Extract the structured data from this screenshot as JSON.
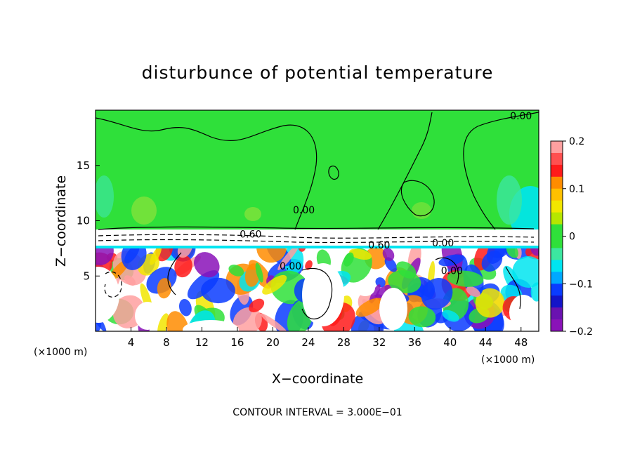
{
  "chart_data": {
    "type": "heatmap",
    "title": "disturbunce of potential temperature",
    "xlabel": "X−coordinate",
    "ylabel": "Z−coordinate",
    "x_unit": "(×1000 m)",
    "x_unit_right": "(×1000 m)",
    "xlim": [
      0,
      50
    ],
    "ylim": [
      0,
      20
    ],
    "x_ticks": [
      4,
      8,
      12,
      16,
      20,
      24,
      28,
      32,
      36,
      40,
      44,
      48
    ],
    "y_ticks": [
      5,
      10,
      15
    ],
    "colorbar": {
      "range": [
        -0.2,
        0.2
      ],
      "tick_values": [
        0.2,
        0.1,
        0,
        -0.1,
        -0.2
      ],
      "tick_labels": [
        "0.2",
        "0.1",
        "0",
        "−0.1",
        "−0.2"
      ]
    },
    "contour_labels": [
      {
        "text": "0.00",
        "x": 48.0,
        "z": 19.5
      },
      {
        "text": "0.00",
        "x": 23.5,
        "z": 11.0
      },
      {
        "text": "0.60",
        "x": 17.5,
        "z": 8.8
      },
      {
        "text": "0.00",
        "x": 22.0,
        "z": 5.9
      },
      {
        "text": "0.60",
        "x": 32.0,
        "z": 7.8
      },
      {
        "text": "0.00",
        "x": 39.2,
        "z": 8.0
      },
      {
        "text": "0.00",
        "x": 40.2,
        "z": 5.5
      }
    ],
    "footer": "CONTOUR INTERVAL = 3.000E−01"
  },
  "colors": {
    "green": "#2fe03a",
    "cyan": "#00e5f0",
    "blue": "#0a3cff",
    "purple": "#8a12b8",
    "yellow": "#f2e600",
    "orange": "#ff8c00",
    "red": "#ff1a1a",
    "pink": "#ffa0a0"
  }
}
